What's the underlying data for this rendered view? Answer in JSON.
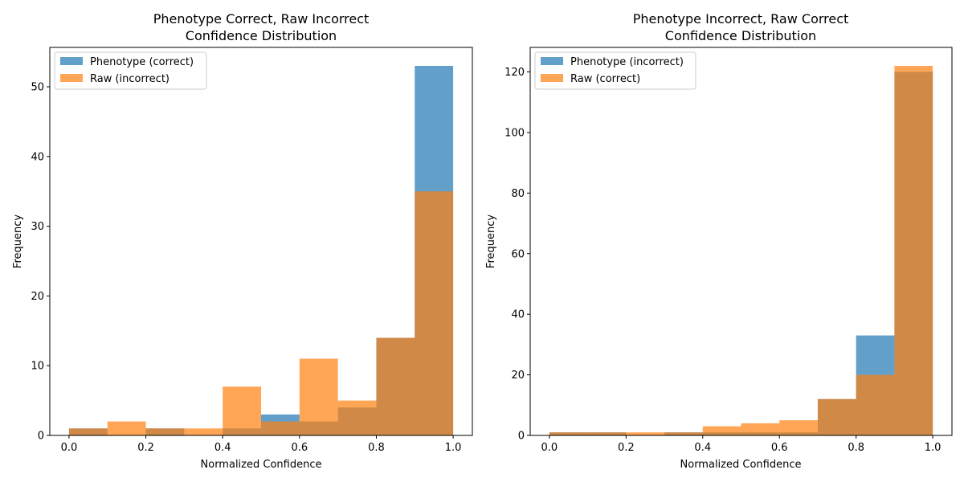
{
  "chart_data": [
    {
      "type": "bar",
      "subtype": "overlapping-histogram",
      "title": "Phenotype Correct, Raw Incorrect",
      "subtitle": "Confidence Distribution",
      "xlabel": "Normalized Confidence",
      "ylabel": "Frequency",
      "xlim": [
        -0.05,
        1.05
      ],
      "ylim": [
        0,
        55.65
      ],
      "xticks": [
        0.0,
        0.2,
        0.4,
        0.6,
        0.8,
        1.0
      ],
      "xtick_labels": [
        "0.0",
        "0.2",
        "0.4",
        "0.6",
        "0.8",
        "1.0"
      ],
      "yticks": [
        0,
        10,
        20,
        30,
        40,
        50
      ],
      "ytick_labels": [
        "0",
        "10",
        "20",
        "30",
        "40",
        "50"
      ],
      "bin_edges": [
        0.0,
        0.1,
        0.2,
        0.3,
        0.4,
        0.5,
        0.6,
        0.7,
        0.8,
        0.9,
        1.0
      ],
      "legend_position": "top-left",
      "grid": false,
      "series": [
        {
          "name": "Phenotype (correct)",
          "color": "#1f77b4",
          "alpha": 0.7,
          "values": [
            1,
            0,
            1,
            0,
            1,
            3,
            2,
            4,
            14,
            53
          ]
        },
        {
          "name": "Raw (incorrect)",
          "color": "#ff7f0e",
          "alpha": 0.7,
          "values": [
            1,
            2,
            1,
            1,
            7,
            2,
            11,
            5,
            14,
            35
          ]
        }
      ]
    },
    {
      "type": "bar",
      "subtype": "overlapping-histogram",
      "title": "Phenotype Incorrect, Raw Correct",
      "subtitle": "Confidence Distribution",
      "xlabel": "Normalized Confidence",
      "ylabel": "Frequency",
      "xlim": [
        -0.05,
        1.05
      ],
      "ylim": [
        0,
        128.1
      ],
      "xticks": [
        0.0,
        0.2,
        0.4,
        0.6,
        0.8,
        1.0
      ],
      "xtick_labels": [
        "0.0",
        "0.2",
        "0.4",
        "0.6",
        "0.8",
        "1.0"
      ],
      "yticks": [
        0,
        20,
        40,
        60,
        80,
        100,
        120
      ],
      "ytick_labels": [
        "0",
        "20",
        "40",
        "60",
        "80",
        "100",
        "120"
      ],
      "bin_edges": [
        0.0,
        0.1,
        0.2,
        0.3,
        0.4,
        0.5,
        0.6,
        0.7,
        0.8,
        0.9,
        1.0
      ],
      "legend_position": "top-left",
      "grid": false,
      "series": [
        {
          "name": "Phenotype (incorrect)",
          "color": "#1f77b4",
          "alpha": 0.7,
          "values": [
            1,
            1,
            0,
            1,
            1,
            1,
            1,
            12,
            33,
            120
          ]
        },
        {
          "name": "Raw (correct)",
          "color": "#ff7f0e",
          "alpha": 0.7,
          "values": [
            1,
            1,
            1,
            1,
            3,
            4,
            5,
            12,
            20,
            122
          ]
        }
      ]
    }
  ]
}
